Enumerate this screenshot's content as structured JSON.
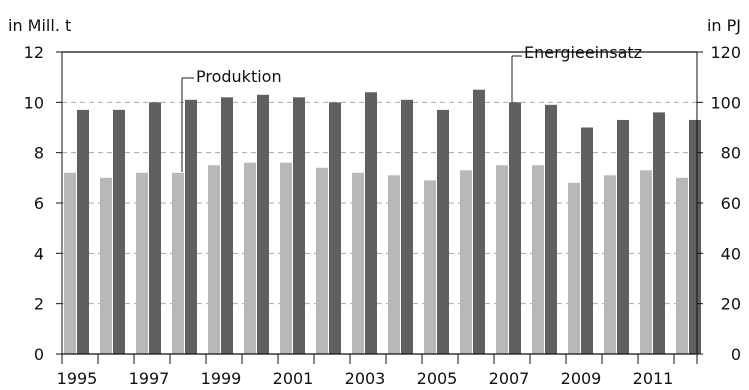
{
  "chart_data": {
    "type": "bar",
    "left_axis_label": "in Mill. t",
    "right_axis_label": "in PJ",
    "categories": [
      "1995",
      "1996",
      "1997",
      "1998",
      "1999",
      "2000",
      "2001",
      "2002",
      "2003",
      "2004",
      "2005",
      "2006",
      "2007",
      "2008",
      "2009",
      "2010",
      "2011",
      "2012"
    ],
    "x_tick_labels": [
      "1995",
      "1997",
      "1999",
      "2001",
      "2003",
      "2005",
      "2007",
      "2009",
      "2011"
    ],
    "left_ylim": [
      0,
      12
    ],
    "left_yticks": [
      "0",
      "2",
      "4",
      "6",
      "8",
      "10",
      "12"
    ],
    "right_ylim": [
      0,
      120
    ],
    "right_yticks": [
      "0",
      "20",
      "40",
      "60",
      "80",
      "100",
      "120"
    ],
    "grid": "dashed horizontal",
    "series": [
      {
        "name": "Produktion",
        "axis": "left",
        "color": "#b8b8b8",
        "values": [
          7.2,
          7.0,
          7.2,
          7.2,
          7.5,
          7.6,
          7.6,
          7.4,
          7.2,
          7.1,
          6.9,
          7.3,
          7.5,
          7.5,
          6.8,
          7.1,
          7.3,
          7.0
        ]
      },
      {
        "name": "Energieeinsatz",
        "axis": "right",
        "color": "#5f5f5f",
        "values": [
          97,
          97,
          100,
          101,
          102,
          103,
          102,
          100,
          104,
          101,
          97,
          105,
          100,
          99,
          90,
          93,
          96,
          93
        ]
      }
    ]
  }
}
